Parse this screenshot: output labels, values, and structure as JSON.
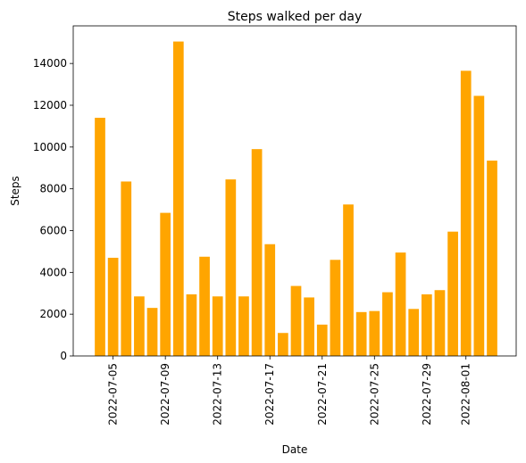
{
  "chart_data": {
    "type": "bar",
    "title": "Steps walked per day",
    "xlabel": "Date",
    "ylabel": "Steps",
    "ylim": [
      0,
      15800
    ],
    "yticks": [
      0,
      2000,
      4000,
      6000,
      8000,
      10000,
      12000,
      14000
    ],
    "grid": false,
    "bar_color": "#ffa500",
    "dates": [
      "2022-07-04",
      "2022-07-05",
      "2022-07-06",
      "2022-07-07",
      "2022-07-08",
      "2022-07-09",
      "2022-07-10",
      "2022-07-11",
      "2022-07-12",
      "2022-07-13",
      "2022-07-14",
      "2022-07-15",
      "2022-07-16",
      "2022-07-17",
      "2022-07-18",
      "2022-07-19",
      "2022-07-20",
      "2022-07-21",
      "2022-07-22",
      "2022-07-23",
      "2022-07-24",
      "2022-07-25",
      "2022-07-26",
      "2022-07-27",
      "2022-07-28",
      "2022-07-29",
      "2022-07-30",
      "2022-07-31",
      "2022-08-01",
      "2022-08-02",
      "2022-08-03"
    ],
    "values": [
      11400,
      4700,
      8350,
      2850,
      2300,
      6850,
      15050,
      2950,
      4750,
      2850,
      8450,
      2850,
      9900,
      5350,
      1100,
      3350,
      2800,
      1500,
      4600,
      7250,
      2100,
      2150,
      3050,
      4950,
      2250,
      2950,
      3150,
      5950,
      13650,
      12450,
      9350
    ],
    "xticks": [
      "2022-07-05",
      "2022-07-09",
      "2022-07-13",
      "2022-07-17",
      "2022-07-21",
      "2022-07-25",
      "2022-07-29",
      "2022-08-01"
    ]
  }
}
